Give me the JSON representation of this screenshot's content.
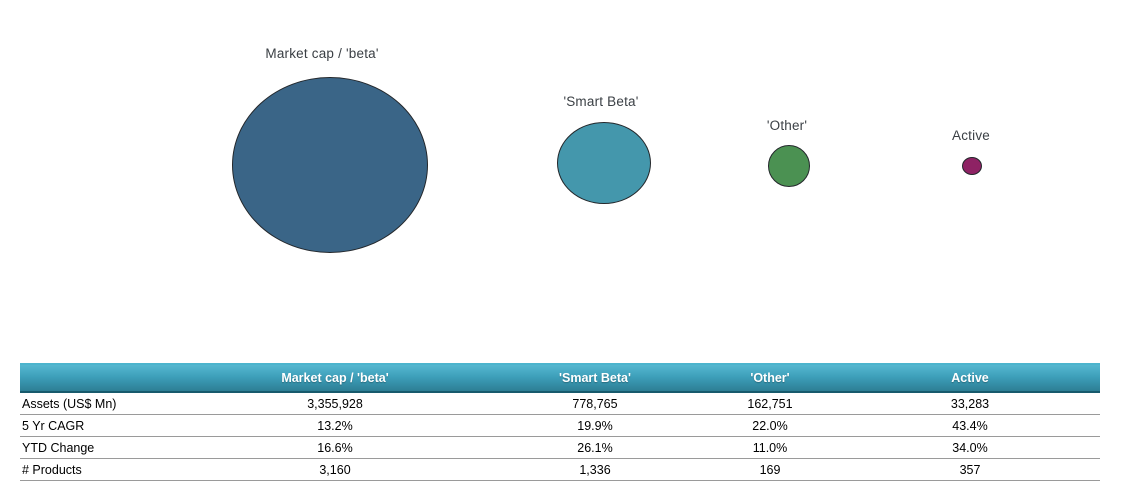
{
  "chart_data": {
    "type": "bubble",
    "title": "",
    "size_metric": "Assets (US$ Mn)",
    "categories": [
      "Market cap / 'beta'",
      "'Smart Beta'",
      "'Other'",
      "Active"
    ],
    "grid": false,
    "legend_position": "none",
    "series": [
      {
        "name": "Market cap / 'beta'",
        "assets_usd_mn": 3355928,
        "cagr_5yr_pct": 13.2,
        "ytd_change_pct": 16.6,
        "products": 3160,
        "color": "#3a6587"
      },
      {
        "name": "'Smart Beta'",
        "assets_usd_mn": 778765,
        "cagr_5yr_pct": 19.9,
        "ytd_change_pct": 26.1,
        "products": 1336,
        "color": "#4497ac"
      },
      {
        "name": "'Other'",
        "assets_usd_mn": 162751,
        "cagr_5yr_pct": 22.0,
        "ytd_change_pct": 11.0,
        "products": 169,
        "color": "#4b9152"
      },
      {
        "name": "Active",
        "assets_usd_mn": 33283,
        "cagr_5yr_pct": 43.4,
        "ytd_change_pct": 34.0,
        "products": 357,
        "color": "#8e2264"
      }
    ]
  },
  "table": {
    "columns": [
      "",
      "Market cap / 'beta'",
      "'Smart Beta'",
      "'Other'",
      "Active"
    ],
    "rows": [
      {
        "label": "Assets (US$ Mn)",
        "values": [
          "3,355,928",
          "778,765",
          "162,751",
          "33,283"
        ]
      },
      {
        "label": "5 Yr CAGR",
        "values": [
          "13.2%",
          "19.9%",
          "22.0%",
          "43.4%"
        ]
      },
      {
        "label": "YTD Change",
        "values": [
          "16.6%",
          "26.1%",
          "11.0%",
          "34.0%"
        ]
      },
      {
        "label": "# Products",
        "values": [
          "3,160",
          "1,336",
          "169",
          "357"
        ]
      }
    ]
  },
  "colors": {
    "header_gradient_top": "#55b7d0",
    "header_gradient_bottom": "#2d7e94",
    "header_text": "#ffffff",
    "row_divider": "#9a9a9a",
    "chart_label_text": "#3a3f44"
  }
}
